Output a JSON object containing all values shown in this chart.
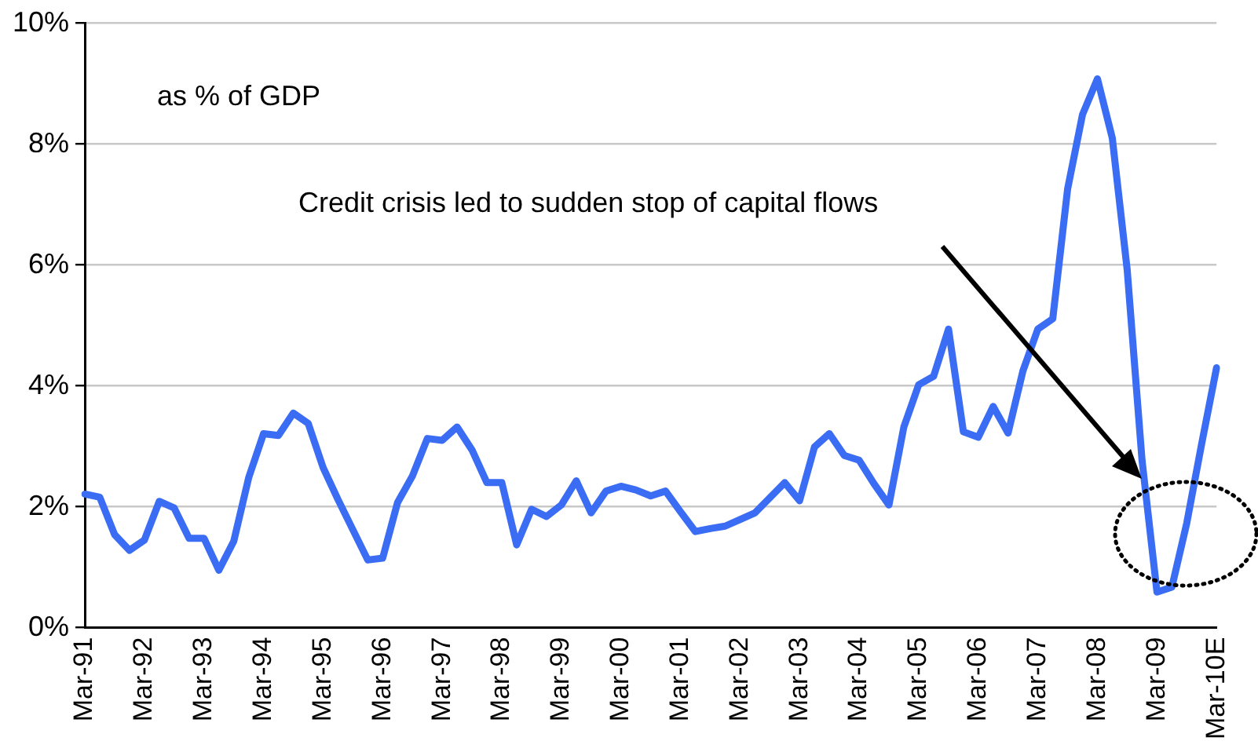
{
  "chart_data": {
    "type": "line",
    "categories": [
      "Mar-91",
      null,
      null,
      null,
      "Mar-92",
      null,
      null,
      null,
      "Mar-93",
      null,
      null,
      null,
      "Mar-94",
      null,
      null,
      null,
      "Mar-95",
      null,
      null,
      null,
      "Mar-96",
      null,
      null,
      null,
      "Mar-97",
      null,
      null,
      null,
      "Mar-98",
      null,
      null,
      null,
      "Mar-99",
      null,
      null,
      null,
      "Mar-00",
      null,
      null,
      null,
      "Mar-01",
      null,
      null,
      null,
      "Mar-02",
      null,
      null,
      null,
      "Mar-03",
      null,
      null,
      null,
      "Mar-04",
      null,
      null,
      null,
      "Mar-05",
      null,
      null,
      null,
      "Mar-06",
      null,
      null,
      null,
      "Mar-07",
      null,
      null,
      null,
      "Mar-08",
      null,
      null,
      null,
      "Mar-09",
      null,
      null,
      null,
      "Mar-10E"
    ],
    "series": [
      {
        "color": "#3a6cf4",
        "values": [
          2.21,
          2.16,
          1.54,
          1.28,
          1.45,
          2.09,
          1.98,
          1.48,
          1.48,
          0.95,
          1.43,
          2.48,
          3.21,
          3.18,
          3.55,
          3.38,
          2.65,
          2.12,
          1.62,
          1.12,
          1.15,
          2.07,
          2.51,
          3.13,
          3.1,
          3.32,
          2.94,
          2.4,
          2.4,
          1.37,
          1.96,
          1.84,
          2.03,
          2.43,
          1.9,
          2.26,
          2.34,
          2.28,
          2.18,
          2.26,
          1.92,
          1.59,
          1.64,
          1.68,
          1.79,
          1.9,
          2.15,
          2.4,
          2.1,
          2.99,
          3.21,
          2.85,
          2.77,
          2.38,
          2.03,
          3.32,
          4.02,
          4.16,
          4.94,
          3.24,
          3.15,
          3.66,
          3.22,
          4.25,
          4.94,
          5.11,
          7.26,
          8.49,
          9.08,
          8.1,
          5.92,
          2.76,
          0.59,
          0.67,
          1.73,
          3.04,
          4.3
        ]
      }
    ],
    "ylim": [
      0,
      10
    ],
    "yticks": [
      {
        "value": 0,
        "label": "0%"
      },
      {
        "value": 2,
        "label": "2%"
      },
      {
        "value": 4,
        "label": "4%"
      },
      {
        "value": 6,
        "label": "6%"
      },
      {
        "value": 8,
        "label": "8%"
      },
      {
        "value": 10,
        "label": "10%"
      }
    ],
    "grid": "y",
    "legend": false,
    "marker": "none",
    "line_style": "solid",
    "annotations": [
      "as % of GDP",
      "Credit crisis led to sudden stop of capital flows"
    ]
  }
}
